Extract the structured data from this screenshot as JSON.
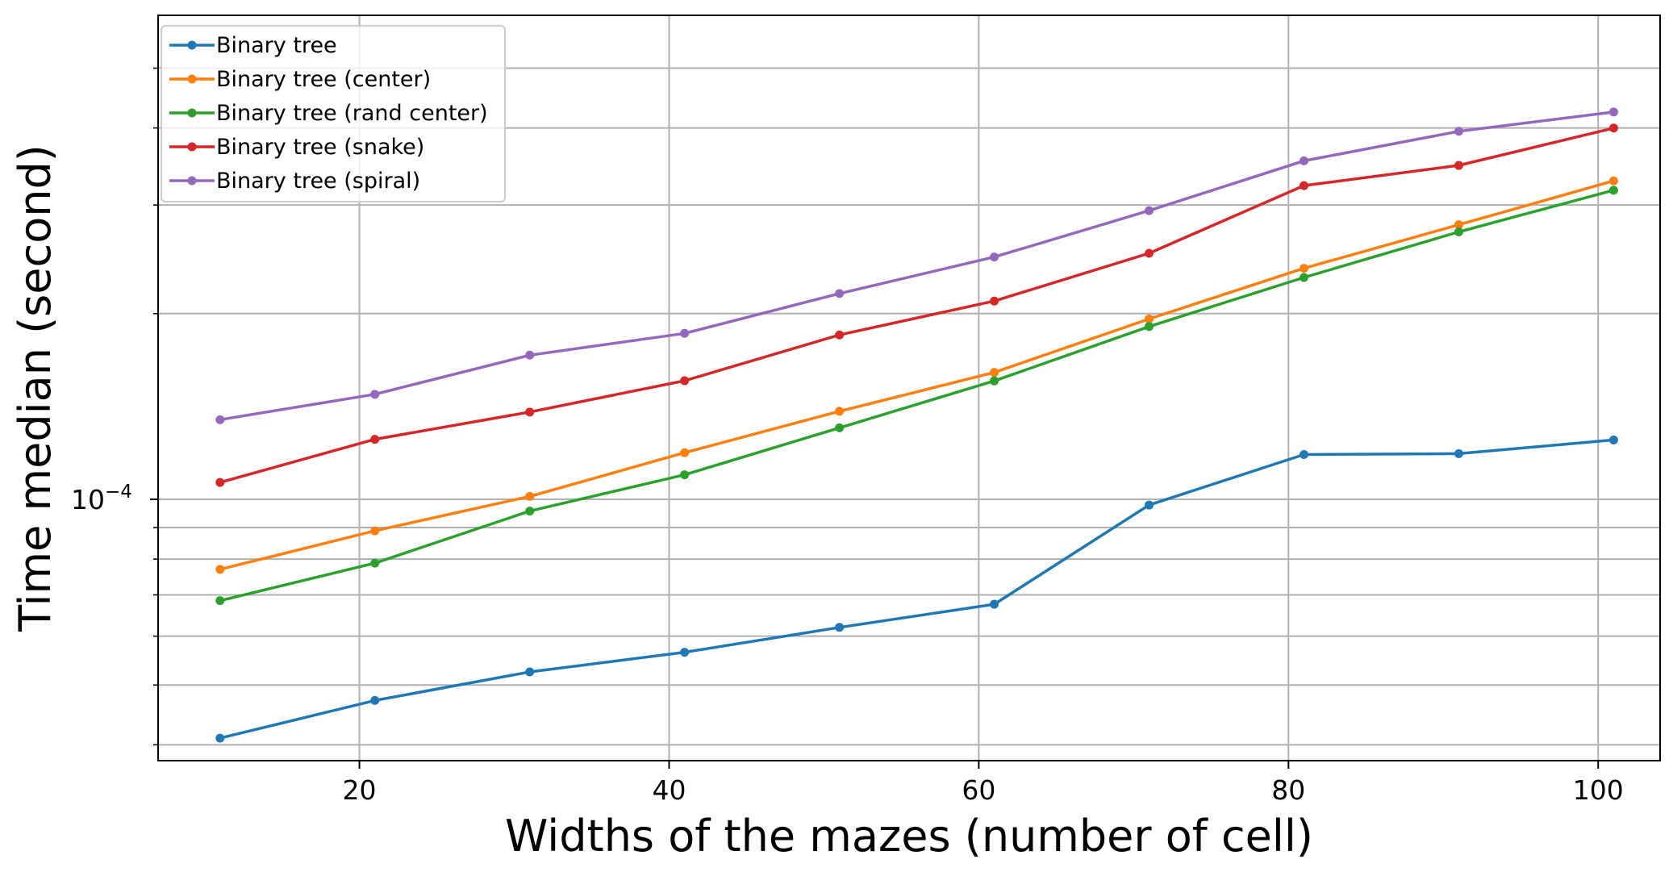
{
  "chart_data": {
    "type": "line",
    "xlabel": "Widths of the mazes (number of cell)",
    "ylabel": "Time median (second)",
    "xscale": "linear",
    "yscale": "log",
    "xlim": [
      7,
      104
    ],
    "ylim": [
      3.77e-05,
      0.000609
    ],
    "x_ticks": [
      20,
      40,
      60,
      80,
      100
    ],
    "y_major_tick": {
      "value": 0.0001,
      "mantissa": "10",
      "exponent": "−4"
    },
    "y_minor_ticks": [
      4e-05,
      5e-05,
      6e-05,
      7e-05,
      8e-05,
      9e-05,
      0.0002,
      0.0003,
      0.0004,
      0.0005
    ],
    "grid": true,
    "legend_position": "top-left",
    "x": [
      11,
      21,
      31,
      41,
      51,
      61,
      71,
      81,
      91,
      101
    ],
    "series": [
      {
        "name": "Binary tree",
        "color": "#1f77b4",
        "values": [
          4.1e-05,
          4.72e-05,
          5.25e-05,
          5.65e-05,
          6.2e-05,
          6.76e-05,
          9.79e-05,
          0.0001182,
          0.0001186,
          0.0001248
        ]
      },
      {
        "name": "Binary tree (center)",
        "color": "#ff7f0e",
        "values": [
          7.7e-05,
          8.89e-05,
          0.0001011,
          0.000119,
          0.0001389,
          0.0001606,
          0.0001961,
          0.0002369,
          0.0002787,
          0.0003283
        ]
      },
      {
        "name": "Binary tree (rand center)",
        "color": "#2ca02c",
        "values": [
          6.85e-05,
          7.88e-05,
          9.57e-05,
          0.0001096,
          0.0001306,
          0.0001556,
          0.0001906,
          0.0002289,
          0.0002713,
          0.000317
        ]
      },
      {
        "name": "Binary tree (snake)",
        "color": "#d62728",
        "values": [
          0.0001065,
          0.0001251,
          0.0001385,
          0.0001557,
          0.0001847,
          0.0002096,
          0.0002505,
          0.0003225,
          0.0003478,
          0.0003998
        ]
      },
      {
        "name": "Binary tree (spiral)",
        "color": "#9467bd",
        "values": [
          0.0001346,
          0.000148,
          0.0001713,
          0.0001858,
          0.0002156,
          0.0002471,
          0.0002938,
          0.0003538,
          0.000395,
          0.0004245
        ]
      }
    ]
  }
}
